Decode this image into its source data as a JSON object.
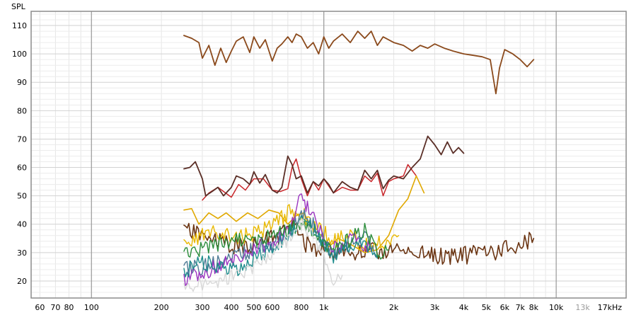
{
  "chart_data": {
    "type": "line",
    "title": "",
    "ylabel": "SPL",
    "xscale": "log",
    "xlim": [
      55,
      20000
    ],
    "ylim": [
      14,
      115
    ],
    "grid": true,
    "x_ticks": [
      {
        "value": 60,
        "label": "60"
      },
      {
        "value": 70,
        "label": "70"
      },
      {
        "value": 80,
        "label": "80"
      },
      {
        "value": 100,
        "label": "100"
      },
      {
        "value": 200,
        "label": "200"
      },
      {
        "value": 300,
        "label": "300"
      },
      {
        "value": 400,
        "label": "400"
      },
      {
        "value": 500,
        "label": "500"
      },
      {
        "value": 600,
        "label": "600"
      },
      {
        "value": 800,
        "label": "800"
      },
      {
        "value": 1000,
        "label": "1k"
      },
      {
        "value": 2000,
        "label": "2k"
      },
      {
        "value": 3000,
        "label": "3k"
      },
      {
        "value": 4000,
        "label": "4k"
      },
      {
        "value": 5000,
        "label": "5k"
      },
      {
        "value": 6000,
        "label": "6k"
      },
      {
        "value": 7000,
        "label": "7k"
      },
      {
        "value": 8000,
        "label": "8k"
      },
      {
        "value": 10000,
        "label": "10k"
      },
      {
        "value": 13000,
        "label": "13k",
        "dim": true
      },
      {
        "value": 17000,
        "label": "17kHz"
      }
    ],
    "y_ticks": [
      20,
      30,
      40,
      50,
      60,
      70,
      80,
      90,
      100,
      110
    ],
    "series": [
      {
        "color": "#8b4a1c",
        "width": 1.8,
        "x": [
          250,
          270,
          290,
          300,
          320,
          340,
          360,
          380,
          400,
          420,
          450,
          480,
          500,
          530,
          560,
          600,
          630,
          660,
          700,
          730,
          760,
          800,
          850,
          900,
          950,
          1000,
          1050,
          1100,
          1200,
          1300,
          1400,
          1500,
          1600,
          1700,
          1800,
          2000,
          2200,
          2400,
          2600,
          2800,
          3000,
          3300,
          3600,
          4000,
          4400,
          4800,
          5200,
          5500,
          5700,
          6000,
          6500,
          7000,
          7500,
          8000
        ],
        "y": [
          106.5,
          105.5,
          104,
          98.5,
          103,
          96,
          102,
          97,
          101,
          104.5,
          106,
          100.5,
          106,
          102,
          105,
          97.5,
          102,
          103.5,
          106,
          104,
          107,
          106,
          102,
          104,
          100,
          106,
          102,
          104.5,
          107,
          104,
          108,
          105.5,
          108,
          103,
          106,
          104,
          103,
          101,
          103,
          102,
          103.5,
          102,
          101,
          100,
          99.5,
          99,
          98,
          86,
          95,
          101.5,
          100,
          98,
          95.5,
          98
        ]
      },
      {
        "color": "#c8262a",
        "width": 1.5,
        "x": [
          300,
          320,
          350,
          400,
          430,
          460,
          500,
          550,
          600,
          650,
          700,
          730,
          760,
          800,
          850,
          900,
          950,
          1000,
          1100,
          1200,
          1300,
          1400,
          1500,
          1600,
          1700,
          1800,
          1900,
          2000,
          2200,
          2300,
          2500
        ],
        "y": [
          48.5,
          51,
          53,
          49.5,
          54,
          52,
          56,
          56,
          52,
          51.5,
          52.5,
          60,
          63,
          56,
          50,
          55,
          52,
          56,
          51,
          53,
          52,
          52,
          57,
          55,
          58,
          50,
          55,
          56,
          57,
          61,
          57
        ]
      },
      {
        "color": "#5a2e26",
        "width": 1.8,
        "x": [
          250,
          265,
          280,
          300,
          310,
          330,
          350,
          370,
          400,
          420,
          450,
          480,
          500,
          530,
          560,
          600,
          630,
          660,
          700,
          730,
          760,
          800,
          850,
          900,
          950,
          1000,
          1050,
          1100,
          1200,
          1300,
          1400,
          1500,
          1600,
          1700,
          1800,
          1900,
          2000,
          2200,
          2400,
          2600,
          2800,
          3000,
          3200,
          3400,
          3600,
          3800,
          4000
        ],
        "y": [
          59.5,
          60,
          62,
          56,
          50,
          51.5,
          53,
          50,
          53,
          57,
          56,
          54,
          58.5,
          54.5,
          57.5,
          52,
          51,
          53,
          64,
          61,
          56,
          57,
          51,
          55,
          53.5,
          56,
          54,
          51,
          55,
          53,
          52,
          59,
          56,
          59,
          52.5,
          55.5,
          57,
          56,
          60,
          63,
          71,
          68,
          64.5,
          69,
          65,
          67,
          65
        ]
      },
      {
        "color": "#6b3513",
        "width": 1.6,
        "noise": 3.2,
        "seed": 11,
        "x": [
          250,
          280,
          320,
          380,
          450,
          550,
          650,
          750,
          800,
          900,
          1000,
          1200,
          1500,
          2000,
          2500,
          3000,
          3500,
          4000,
          5000,
          6000,
          7000,
          8000
        ],
        "y": [
          38,
          37,
          35,
          33,
          32,
          34,
          36,
          40,
          34,
          32,
          31,
          30,
          30,
          31,
          30,
          29,
          29,
          29,
          30,
          31,
          33,
          35
        ]
      },
      {
        "color": "#e0a800",
        "width": 1.6,
        "x": [
          250,
          270,
          290,
          320,
          350,
          380,
          420,
          470,
          520,
          580,
          640,
          700,
          760,
          820,
          900,
          980,
          1050,
          1150,
          1300,
          1500,
          1700,
          1900,
          2100,
          2300,
          2500,
          2700
        ],
        "y": [
          45,
          45.5,
          40,
          44,
          42,
          44,
          41,
          44,
          42,
          45,
          44,
          40,
          43,
          44,
          38,
          36,
          32,
          35,
          33,
          30,
          31,
          36,
          45,
          49,
          57,
          51
        ]
      },
      {
        "color": "#e8b800",
        "width": 1.4,
        "noise": 3.0,
        "seed": 23,
        "x": [
          250,
          300,
          350,
          420,
          500,
          600,
          700,
          800,
          900,
          1000,
          1100,
          1300,
          1500,
          1700,
          1900,
          2100
        ],
        "y": [
          33,
          36,
          37,
          35,
          37,
          39,
          44,
          44,
          40,
          37,
          34,
          36,
          32,
          33,
          35,
          36
        ]
      },
      {
        "color": "#4f7b96",
        "width": 1.4,
        "noise": 3.0,
        "seed": 31,
        "x": [
          250,
          300,
          350,
          420,
          500,
          600,
          700,
          800,
          900,
          1000,
          1100,
          1300,
          1500,
          1700
        ],
        "y": [
          24,
          25,
          27,
          29,
          31,
          33,
          37,
          44,
          40,
          34,
          30,
          34,
          35,
          29
        ]
      },
      {
        "color": "#9b36c0",
        "width": 1.4,
        "noise": 2.8,
        "seed": 41,
        "x": [
          250,
          300,
          350,
          420,
          500,
          600,
          700,
          780,
          850,
          950,
          1050,
          1200,
          1400,
          1600
        ],
        "y": [
          21,
          23,
          25,
          28,
          31,
          34,
          37,
          49,
          46,
          38,
          32,
          33,
          35,
          31
        ]
      },
      {
        "color": "#2a8c3a",
        "width": 1.4,
        "noise": 3.0,
        "seed": 53,
        "x": [
          250,
          300,
          350,
          420,
          500,
          600,
          700,
          800,
          900,
          1000,
          1100,
          1300,
          1500,
          1700,
          1900
        ],
        "y": [
          29,
          31,
          33,
          34,
          33,
          36,
          38,
          41,
          37,
          33,
          30,
          35,
          38,
          30,
          31
        ]
      },
      {
        "color": "#1e8c8c",
        "width": 1.4,
        "noise": 3.0,
        "seed": 61,
        "x": [
          250,
          300,
          350,
          420,
          500,
          600,
          700,
          800,
          900,
          1000,
          1100,
          1300,
          1500,
          1700
        ],
        "y": [
          23,
          27,
          25,
          24,
          28,
          32,
          36,
          42,
          38,
          33,
          29,
          33,
          34,
          28
        ]
      },
      {
        "color": "#d8d8d8",
        "width": 1.4,
        "noise": 2.4,
        "seed": 71,
        "x": [
          250,
          300,
          350,
          420,
          500,
          600,
          700,
          800,
          900,
          1000,
          1050,
          1100,
          1200
        ],
        "y": [
          18,
          19,
          20,
          22,
          25,
          30,
          34,
          40,
          36,
          28,
          22,
          20,
          22
        ]
      }
    ]
  }
}
